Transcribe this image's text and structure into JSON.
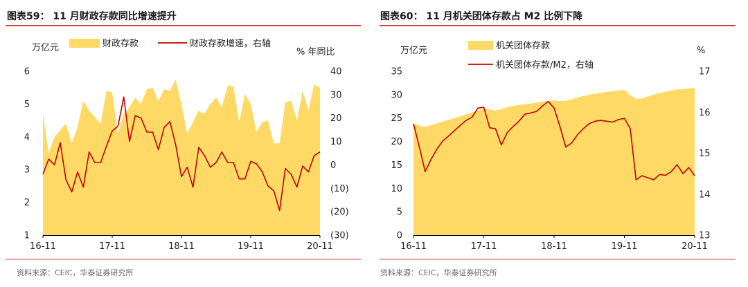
{
  "colors": {
    "accent": "#C00000",
    "area": "#FFD966",
    "axis": "#000000"
  },
  "chart_data": [
    {
      "type": "area",
      "title": "图表59： 11 月财政存款同比增速提升",
      "ylabel": "万亿元",
      "y2label": "% 年同比",
      "ylim": [
        1,
        6
      ],
      "y2lim": [
        -30,
        40
      ],
      "grid": false,
      "y_ticks": [
        {
          "value": 1,
          "label": "1"
        },
        {
          "value": 2,
          "label": "2"
        },
        {
          "value": 3,
          "label": "3"
        },
        {
          "value": 4,
          "label": "4"
        },
        {
          "value": 5,
          "label": "5"
        },
        {
          "value": 6,
          "label": "6"
        }
      ],
      "y2_ticks": [
        {
          "value": 40,
          "label": "40"
        },
        {
          "value": 30,
          "label": "30"
        },
        {
          "value": 20,
          "label": "20"
        },
        {
          "value": 10,
          "label": "10"
        },
        {
          "value": 0,
          "label": "0"
        },
        {
          "value": -10,
          "label": "(10)"
        },
        {
          "value": -20,
          "label": "(20)"
        },
        {
          "value": -30,
          "label": "(30)"
        }
      ],
      "x_ticks": [
        {
          "index": 0,
          "label": "16-11"
        },
        {
          "index": 12,
          "label": "17-11"
        },
        {
          "index": 24,
          "label": "18-11"
        },
        {
          "index": 36,
          "label": "19-11"
        },
        {
          "index": 48,
          "label": "20-11"
        }
      ],
      "area_series": {
        "name": "财政存款",
        "color": "#FFD966",
        "values": [
          4.7,
          3.5,
          4.0,
          4.2,
          4.4,
          3.8,
          4.3,
          5.1,
          4.8,
          4.6,
          4.4,
          5.4,
          5.35,
          4.1,
          4.7,
          4.9,
          5.2,
          5.0,
          5.45,
          5.5,
          5.1,
          5.45,
          5.4,
          5.75,
          5.0,
          4.1,
          4.45,
          4.8,
          4.7,
          5.0,
          5.2,
          4.9,
          5.55,
          5.55,
          4.45,
          5.3,
          5.0,
          4.15,
          4.45,
          4.5,
          3.8,
          3.8,
          5.05,
          5.1,
          4.5,
          5.4,
          4.8,
          5.6,
          5.5
        ]
      },
      "line_series": {
        "name": "财政存款增速，右轴",
        "color": "#C00000",
        "values": [
          -4,
          2.5,
          0,
          9.5,
          -6.5,
          -11.5,
          -3,
          -9.5,
          5.5,
          1,
          1,
          8,
          14.5,
          16.5,
          29,
          10,
          21,
          20,
          14,
          14,
          6.5,
          16,
          18.5,
          8.5,
          -5,
          -1,
          -9.5,
          7.5,
          4,
          -1,
          1,
          5.5,
          1,
          1,
          -6,
          -6,
          1.5,
          0.5,
          -3,
          -9,
          -11,
          -19.5,
          -1.5,
          -4,
          -9.5,
          -0.5,
          -3,
          4,
          5.5
        ]
      },
      "source": "资料来源：CEIC，华泰证券研究所"
    },
    {
      "type": "area",
      "title": "图表60： 11 月机关团体存款占 M2 比例下降",
      "ylabel": "万亿元",
      "y2label": "%",
      "ylim": [
        0,
        35
      ],
      "y2lim": [
        13,
        17
      ],
      "grid": false,
      "y_ticks": [
        {
          "value": 0,
          "label": "0"
        },
        {
          "value": 5,
          "label": "5"
        },
        {
          "value": 10,
          "label": "10"
        },
        {
          "value": 15,
          "label": "15"
        },
        {
          "value": 20,
          "label": "20"
        },
        {
          "value": 25,
          "label": "25"
        },
        {
          "value": 30,
          "label": "30"
        },
        {
          "value": 35,
          "label": "35"
        }
      ],
      "y2_ticks": [
        {
          "value": 17,
          "label": "17"
        },
        {
          "value": 16,
          "label": "16"
        },
        {
          "value": 15,
          "label": "15"
        },
        {
          "value": 14,
          "label": "14"
        },
        {
          "value": 13,
          "label": "13"
        }
      ],
      "x_ticks": [
        {
          "index": 0,
          "label": "16-11"
        },
        {
          "index": 12,
          "label": "17-11"
        },
        {
          "index": 24,
          "label": "18-11"
        },
        {
          "index": 36,
          "label": "19-11"
        },
        {
          "index": 48,
          "label": "20-11"
        }
      ],
      "area_series": {
        "name": "机关团体存款",
        "color": "#FFD966",
        "values": [
          23.9,
          23.4,
          23.1,
          23.5,
          23.9,
          24.3,
          24.6,
          25.0,
          25.4,
          25.8,
          26.2,
          26.6,
          27.0,
          26.8,
          26.6,
          26.9,
          27.3,
          27.6,
          27.8,
          28.0,
          28.1,
          28.3,
          28.5,
          28.7,
          28.8,
          28.6,
          28.7,
          29.0,
          29.4,
          29.7,
          30.0,
          30.2,
          30.4,
          30.6,
          30.7,
          30.9,
          31.0,
          29.9,
          29.1,
          29.2,
          29.6,
          30.0,
          30.3,
          30.6,
          30.9,
          31.1,
          31.2,
          31.3,
          31.5
        ]
      },
      "line_series": {
        "name": "机关团体存款/M2，右轴",
        "color": "#C00000",
        "values": [
          15.72,
          15.15,
          14.55,
          14.85,
          15.1,
          15.3,
          15.42,
          15.55,
          15.68,
          15.8,
          15.88,
          16.1,
          16.12,
          15.62,
          15.6,
          15.2,
          15.5,
          15.65,
          15.78,
          15.95,
          15.98,
          16.02,
          16.15,
          16.26,
          16.1,
          15.65,
          15.15,
          15.25,
          15.45,
          15.6,
          15.72,
          15.78,
          15.8,
          15.78,
          15.76,
          15.82,
          15.85,
          15.6,
          14.35,
          14.45,
          14.4,
          14.35,
          14.48,
          14.46,
          14.55,
          14.72,
          14.5,
          14.65,
          14.45
        ]
      },
      "source": "资料来源：CEIC，华泰证券研究所"
    }
  ]
}
